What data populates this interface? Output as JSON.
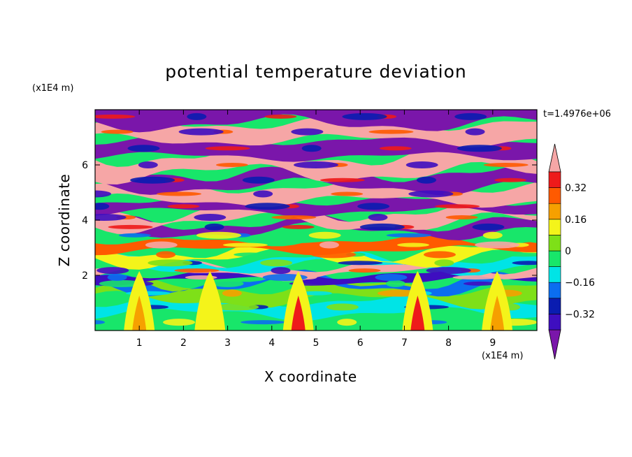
{
  "chart_data": {
    "type": "heatmap",
    "title": "potential temperature deviation",
    "time_label": "t=1.4976e+06",
    "xlabel": "X coordinate",
    "ylabel": "Z coordinate",
    "x_unit": "(x1E4 m)",
    "y_unit": "(x1E4 m)",
    "xlim": [
      0,
      10
    ],
    "ylim": [
      0,
      8
    ],
    "x_ticks": [
      "1",
      "2",
      "3",
      "4",
      "5",
      "6",
      "7",
      "8",
      "9"
    ],
    "y_ticks": [
      "2",
      "4",
      "6"
    ],
    "colorbar": {
      "tick_labels": [
        "0.32",
        "0.16",
        "0",
        "−0.16",
        "−0.32"
      ],
      "tick_values": [
        0.32,
        0.16,
        0,
        -0.16,
        -0.32
      ],
      "levels": [
        -0.4,
        -0.32,
        -0.24,
        -0.16,
        -0.08,
        0,
        0.08,
        0.16,
        0.24,
        0.32,
        0.4
      ],
      "extend": "both",
      "colors": [
        "#7a16aa",
        "#3e0ec0",
        "#0a1cb0",
        "#0b6ef0",
        "#00e4e6",
        "#18e66a",
        "#7ee018",
        "#f4f41a",
        "#f6a000",
        "#ff5a00",
        "#ee1a1a",
        "#f6a6a6"
      ]
    },
    "bands": [
      {
        "z0": 0.0,
        "z1": 0.6,
        "level": 5
      },
      {
        "z0": 0.6,
        "z1": 1.1,
        "level": 4
      },
      {
        "z0": 1.1,
        "z1": 1.6,
        "level": 6
      },
      {
        "z0": 1.6,
        "z1": 1.8,
        "level": 3
      },
      {
        "z0": 1.8,
        "z1": 2.05,
        "level": 1
      },
      {
        "z0": 2.05,
        "z1": 2.3,
        "level": 11
      },
      {
        "z0": 2.3,
        "z1": 2.6,
        "level": 4
      },
      {
        "z0": 2.6,
        "z1": 2.9,
        "level": 7
      },
      {
        "z0": 2.9,
        "z1": 3.3,
        "level": 9
      },
      {
        "z0": 3.3,
        "z1": 3.6,
        "level": 5
      },
      {
        "z0": 3.6,
        "z1": 3.9,
        "level": 0
      },
      {
        "z0": 3.9,
        "z1": 4.3,
        "level": 11
      },
      {
        "z0": 4.3,
        "z1": 4.7,
        "level": 0
      },
      {
        "z0": 4.7,
        "z1": 5.2,
        "level": 11
      },
      {
        "z0": 5.2,
        "z1": 5.7,
        "level": 0
      },
      {
        "z0": 5.7,
        "z1": 6.3,
        "level": 11
      },
      {
        "z0": 6.3,
        "z1": 6.9,
        "level": 0
      },
      {
        "z0": 6.9,
        "z1": 7.5,
        "level": 11
      },
      {
        "z0": 7.5,
        "z1": 8.0,
        "level": 0
      }
    ],
    "plumes": [
      {
        "x": 1.0,
        "level": 8
      },
      {
        "x": 2.6,
        "level": 7
      },
      {
        "x": 4.6,
        "level": 10
      },
      {
        "x": 7.3,
        "level": 10
      },
      {
        "x": 9.1,
        "level": 8
      }
    ]
  }
}
